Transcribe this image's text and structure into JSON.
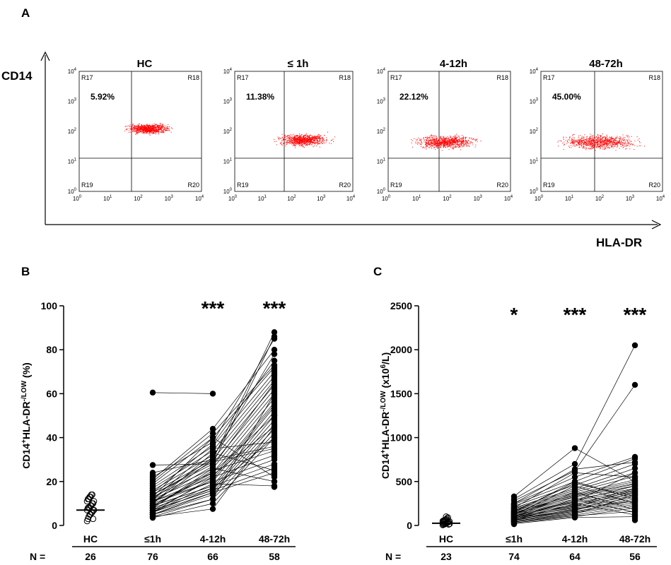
{
  "figure": {
    "panel_a_label": "A",
    "panel_b_label": "B",
    "panel_c_label": "C"
  },
  "flow": {
    "y_axis_label": "CD14",
    "x_axis_label": "HLA-DR",
    "region_labels": [
      "R17",
      "R18",
      "R19",
      "R20"
    ],
    "tick_base": "10",
    "tick_exponents": [
      "0",
      "1",
      "2",
      "3",
      "4"
    ],
    "dot_color": "#ff0000",
    "plots": [
      {
        "title": "HC",
        "percent": "5.92%"
      },
      {
        "title": "≤ 1h",
        "percent": "11.38%"
      },
      {
        "title": "4-12h",
        "percent": "22.12%"
      },
      {
        "title": "48-72h",
        "percent": "45.00%"
      }
    ]
  },
  "chart_data": [
    {
      "type": "scatter",
      "title": "",
      "ylabel": "CD14+HLA-DR-/LOW (%)",
      "ylabel_parts": {
        "a": "CD14",
        "a_sup": "+",
        "b": "HLA-DR",
        "b_sup": "-/LOW",
        "c": " (%)"
      },
      "ylim": [
        0,
        100
      ],
      "yticks": [
        "0",
        "20",
        "40",
        "60",
        "80",
        "100"
      ],
      "categories": [
        "HC",
        "≤1h",
        "4-12h",
        "48-72h"
      ],
      "n_label": "N =",
      "n_values": [
        "26",
        "76",
        "66",
        "58"
      ],
      "significance": [
        "",
        "",
        "***",
        "***"
      ],
      "hc_median": 7,
      "hc_values": [
        2,
        3,
        4,
        5,
        5,
        6,
        6,
        7,
        7,
        7,
        8,
        8,
        8,
        9,
        9,
        10,
        10,
        11,
        11,
        12,
        12,
        13,
        13,
        14,
        14,
        3
      ],
      "paired_points": [
        [
          60.5,
          60,
          null
        ],
        [
          27.5,
          28,
          86
        ],
        [
          24,
          30,
          88
        ],
        [
          22,
          38,
          85
        ],
        [
          21,
          44,
          80
        ],
        [
          20,
          42,
          73
        ],
        [
          19,
          40,
          72
        ],
        [
          18,
          36,
          70
        ],
        [
          17,
          34,
          68
        ],
        [
          16,
          32,
          66
        ],
        [
          15,
          30,
          64
        ],
        [
          14,
          28,
          62
        ],
        [
          13,
          26,
          60
        ],
        [
          12,
          24,
          58
        ],
        [
          11,
          22,
          56
        ],
        [
          10,
          20,
          54
        ],
        [
          9,
          18,
          52
        ],
        [
          8,
          17,
          50
        ],
        [
          7,
          16,
          48
        ],
        [
          6,
          15,
          46
        ],
        [
          5,
          14,
          44
        ],
        [
          4,
          12,
          42
        ],
        [
          3.5,
          10,
          40
        ],
        [
          12,
          35,
          38
        ],
        [
          10,
          30,
          36
        ],
        [
          8,
          25,
          34
        ],
        [
          6,
          22,
          32
        ],
        [
          11,
          20,
          30
        ],
        [
          9,
          18,
          28
        ],
        [
          7,
          16,
          26
        ],
        [
          5,
          15,
          24
        ],
        [
          13,
          40,
          22
        ],
        [
          8,
          26,
          20
        ],
        [
          6,
          19,
          18
        ],
        [
          10,
          33,
          25
        ],
        [
          14,
          29,
          35
        ],
        [
          9,
          23,
          45
        ],
        [
          7,
          21,
          55
        ],
        [
          11,
          27,
          65
        ],
        [
          5,
          12,
          60
        ],
        [
          4,
          7.5,
          45
        ],
        [
          15,
          37,
          75
        ],
        [
          12,
          31,
          78
        ],
        [
          9,
          24,
          50
        ],
        [
          6,
          17,
          40
        ]
      ],
      "extra_first": [
        4,
        5,
        6,
        7,
        8,
        9,
        10,
        11,
        12,
        13,
        14,
        15,
        16,
        17,
        18,
        19,
        20,
        21,
        22,
        23,
        8,
        9,
        10,
        6,
        7,
        5,
        12,
        14,
        16,
        11,
        13
      ],
      "extra_last": [
        17.5,
        20,
        23,
        27,
        31,
        33,
        37,
        39,
        41,
        43,
        47,
        49,
        51,
        53,
        57,
        59,
        61,
        63,
        67,
        69,
        71
      ]
    },
    {
      "type": "scatter",
      "title": "",
      "ylabel": "CD14+HLA-DR-/LOW (x106/L)",
      "ylabel_parts": {
        "a": "CD14",
        "a_sup": "+",
        "b": "HLA-DR",
        "b_sup": "-/LOW",
        "c": " (x10",
        "c_sup": "6",
        "d": "/L)"
      },
      "ylim": [
        0,
        2500
      ],
      "yticks": [
        "0",
        "500",
        "1000",
        "1500",
        "2000",
        "2500"
      ],
      "categories": [
        "HC",
        "≤1h",
        "4-12h",
        "48-72h"
      ],
      "n_label": "N =",
      "n_values": [
        "23",
        "74",
        "64",
        "56"
      ],
      "significance": [
        "",
        "*",
        "***",
        "***"
      ],
      "hc_median": 25,
      "hc_values": [
        5,
        10,
        15,
        20,
        25,
        30,
        35,
        40,
        45,
        50,
        55,
        60,
        65,
        70,
        80,
        90,
        12,
        18,
        28,
        38,
        48,
        58,
        100
      ],
      "paired_points": [
        [
          330,
          880,
          500
        ],
        [
          300,
          700,
          2050
        ],
        [
          280,
          620,
          1600
        ],
        [
          250,
          550,
          780
        ],
        [
          240,
          500,
          760
        ],
        [
          220,
          460,
          700
        ],
        [
          200,
          420,
          650
        ],
        [
          190,
          400,
          600
        ],
        [
          180,
          380,
          560
        ],
        [
          170,
          360,
          520
        ],
        [
          160,
          340,
          480
        ],
        [
          150,
          320,
          450
        ],
        [
          140,
          300,
          420
        ],
        [
          130,
          280,
          400
        ],
        [
          120,
          260,
          380
        ],
        [
          110,
          240,
          360
        ],
        [
          100,
          220,
          340
        ],
        [
          90,
          200,
          320
        ],
        [
          80,
          180,
          300
        ],
        [
          70,
          160,
          280
        ],
        [
          60,
          150,
          260
        ],
        [
          50,
          140,
          240
        ],
        [
          40,
          120,
          220
        ],
        [
          30,
          100,
          200
        ],
        [
          150,
          500,
          300
        ],
        [
          120,
          450,
          250
        ],
        [
          100,
          380,
          180
        ],
        [
          80,
          300,
          150
        ],
        [
          60,
          250,
          120
        ],
        [
          140,
          350,
          500
        ],
        [
          110,
          280,
          450
        ],
        [
          90,
          230,
          420
        ],
        [
          70,
          170,
          380
        ],
        [
          50,
          130,
          350
        ],
        [
          200,
          600,
          550
        ],
        [
          160,
          480,
          330
        ],
        [
          130,
          330,
          470
        ],
        [
          100,
          270,
          600
        ],
        [
          80,
          210,
          400
        ],
        [
          60,
          190,
          280
        ],
        [
          40,
          110,
          160
        ],
        [
          250,
          640,
          720
        ],
        [
          20,
          90,
          100
        ]
      ],
      "extra_first": [
        15,
        25,
        35,
        45,
        55,
        65,
        75,
        85,
        95,
        105,
        115,
        125,
        135,
        145,
        155,
        165,
        175,
        185,
        195,
        205,
        215,
        225,
        235,
        245,
        40,
        60,
        80,
        100,
        120,
        140,
        160
      ],
      "extra_last": [
        60,
        80,
        110,
        130,
        170,
        190,
        210,
        230,
        270,
        290,
        310,
        350,
        370,
        390,
        410,
        430,
        460,
        490,
        510,
        540
      ]
    }
  ]
}
